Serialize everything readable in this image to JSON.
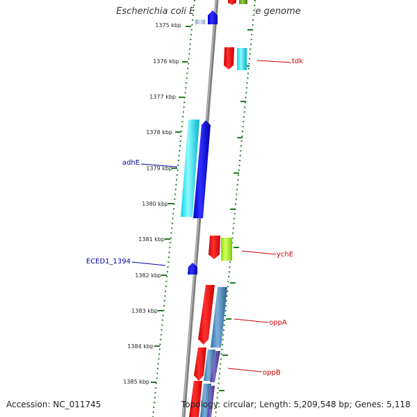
{
  "title": "Escherichia coli ED1a, complete genome",
  "footer": {
    "accession": "Accession: NC_011745",
    "topology": "Topology: circular; Length: 5,209,548 bp; Genes: 5,118"
  },
  "colors": {
    "backbone": "#8a8a8a",
    "tick": "#1f7a1f",
    "gene_label": "#cc0000",
    "gene_label_reverse": "#000099"
  },
  "ruler": [
    {
      "label": "1375 kbp"
    },
    {
      "label": "1376 kbp"
    },
    {
      "label": "1377 kbp"
    },
    {
      "label": "1378 kbp"
    },
    {
      "label": "1379 kbp"
    },
    {
      "label": "1380 kbp"
    },
    {
      "label": "1381 kbp"
    },
    {
      "label": "1382 kbp"
    },
    {
      "label": "1383 kbp"
    },
    {
      "label": "1384 kbp"
    },
    {
      "label": "1385 kbp"
    }
  ],
  "gene_labels": [
    {
      "name": "tdk",
      "side": "right"
    },
    {
      "name": "adhE",
      "side": "left"
    },
    {
      "name": "ychE",
      "side": "right"
    },
    {
      "name": "ECED1_1394",
      "side": "left"
    },
    {
      "name": "oppA",
      "side": "right"
    },
    {
      "name": "oppB",
      "side": "right"
    }
  ]
}
